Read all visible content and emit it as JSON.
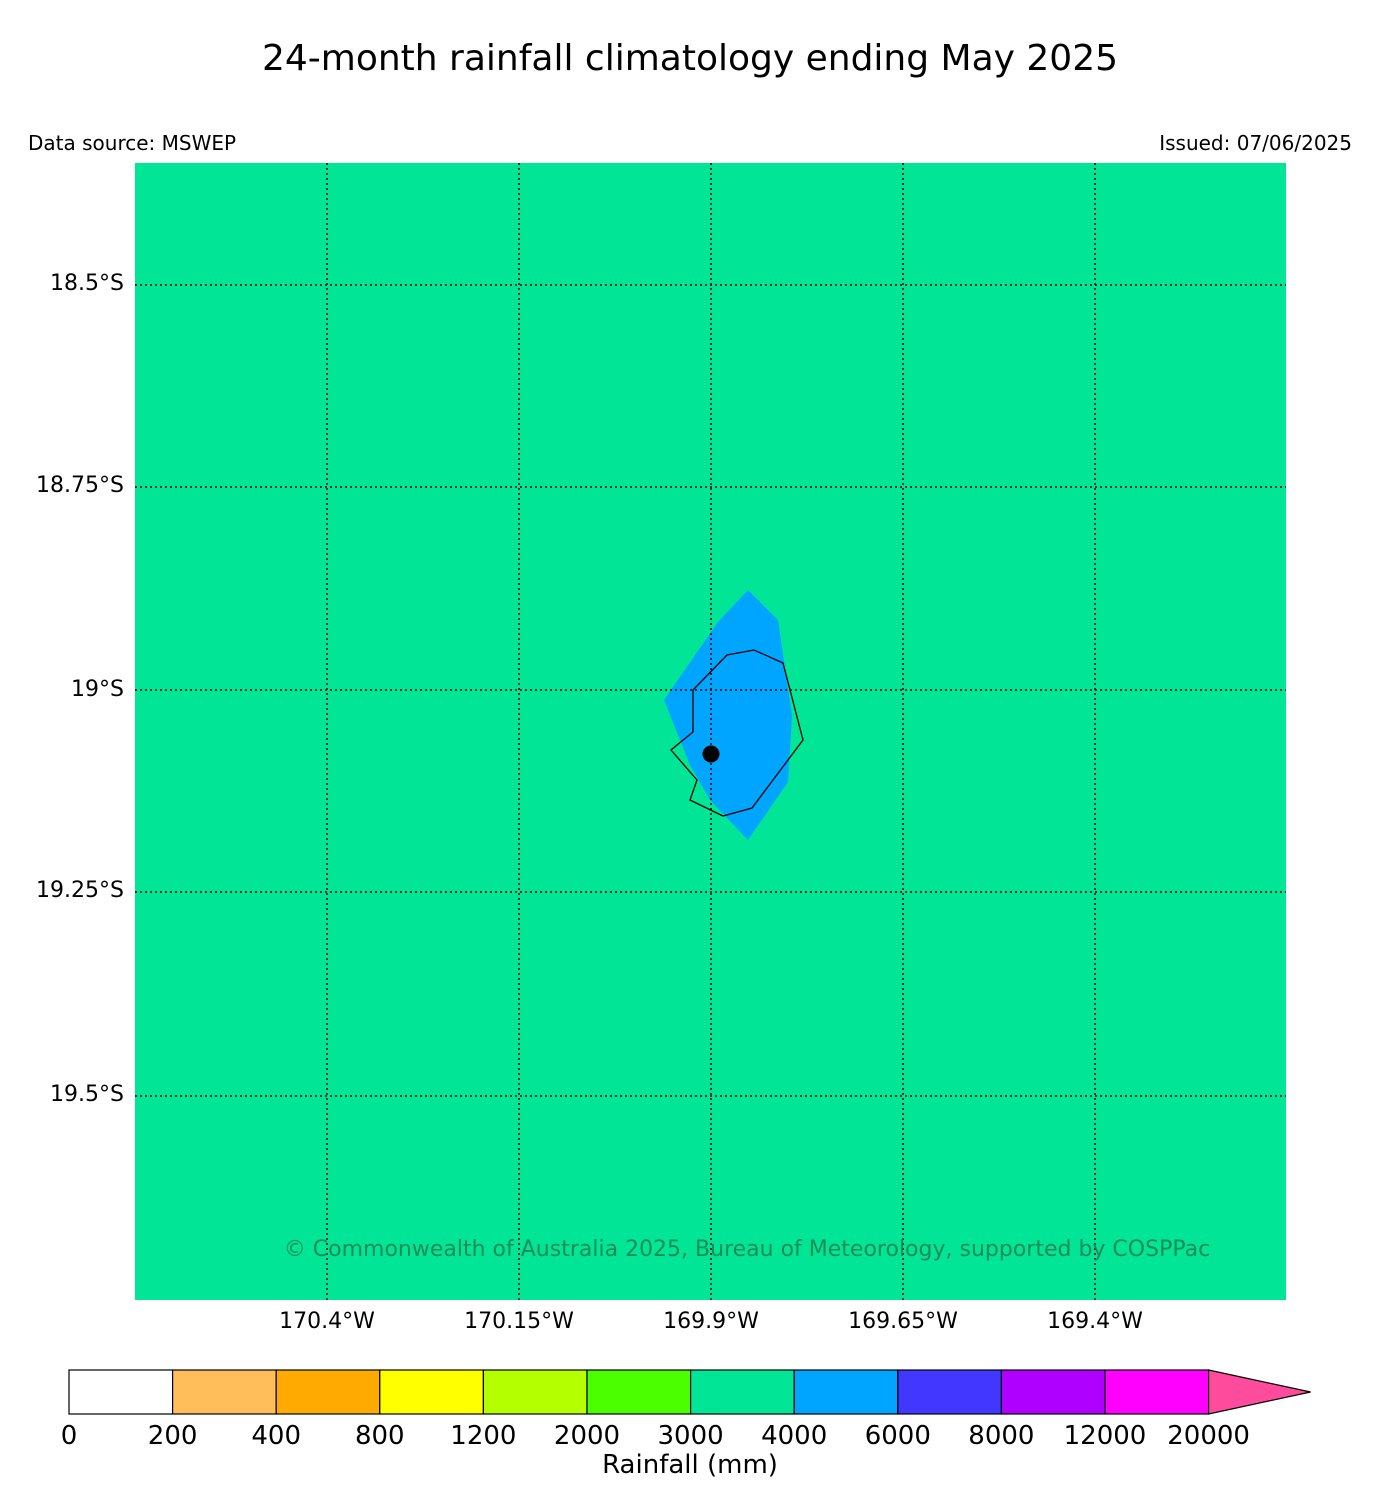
{
  "title": "24-month rainfall climatology ending May 2025",
  "data_source": "Data source: MSWEP",
  "issued": "Issued: 07/06/2025",
  "copyright": "© Commonwealth of Australia 2025, Bureau of Meteorology, supported by COSPPac",
  "map": {
    "background_color": "#00e696",
    "lat_labels": [
      "18.5°S",
      "18.75°S",
      "19°S",
      "19.25°S",
      "19.5°S"
    ],
    "lon_labels": [
      "170.4°W",
      "170.15°W",
      "169.9°W",
      "169.65°W",
      "169.4°W"
    ],
    "gridlines": "dotted",
    "wet_area_color": "#00a5ff",
    "wet_area_class": "4000-6000 mm",
    "background_class": "3000-4000 mm",
    "marker": "location-dot"
  },
  "colorbar": {
    "label": "Rainfall (mm)",
    "ticks": [
      "0",
      "200",
      "400",
      "800",
      "1200",
      "2000",
      "3000",
      "4000",
      "6000",
      "8000",
      "12000",
      "20000"
    ],
    "colors": [
      "#ffffff",
      "#ffbe5a",
      "#ffaa00",
      "#ffff00",
      "#b4ff00",
      "#4bff00",
      "#00e696",
      "#00a5ff",
      "#4137ff",
      "#af00ff",
      "#ff00ff"
    ],
    "extend_color": "#ff4b9b"
  }
}
